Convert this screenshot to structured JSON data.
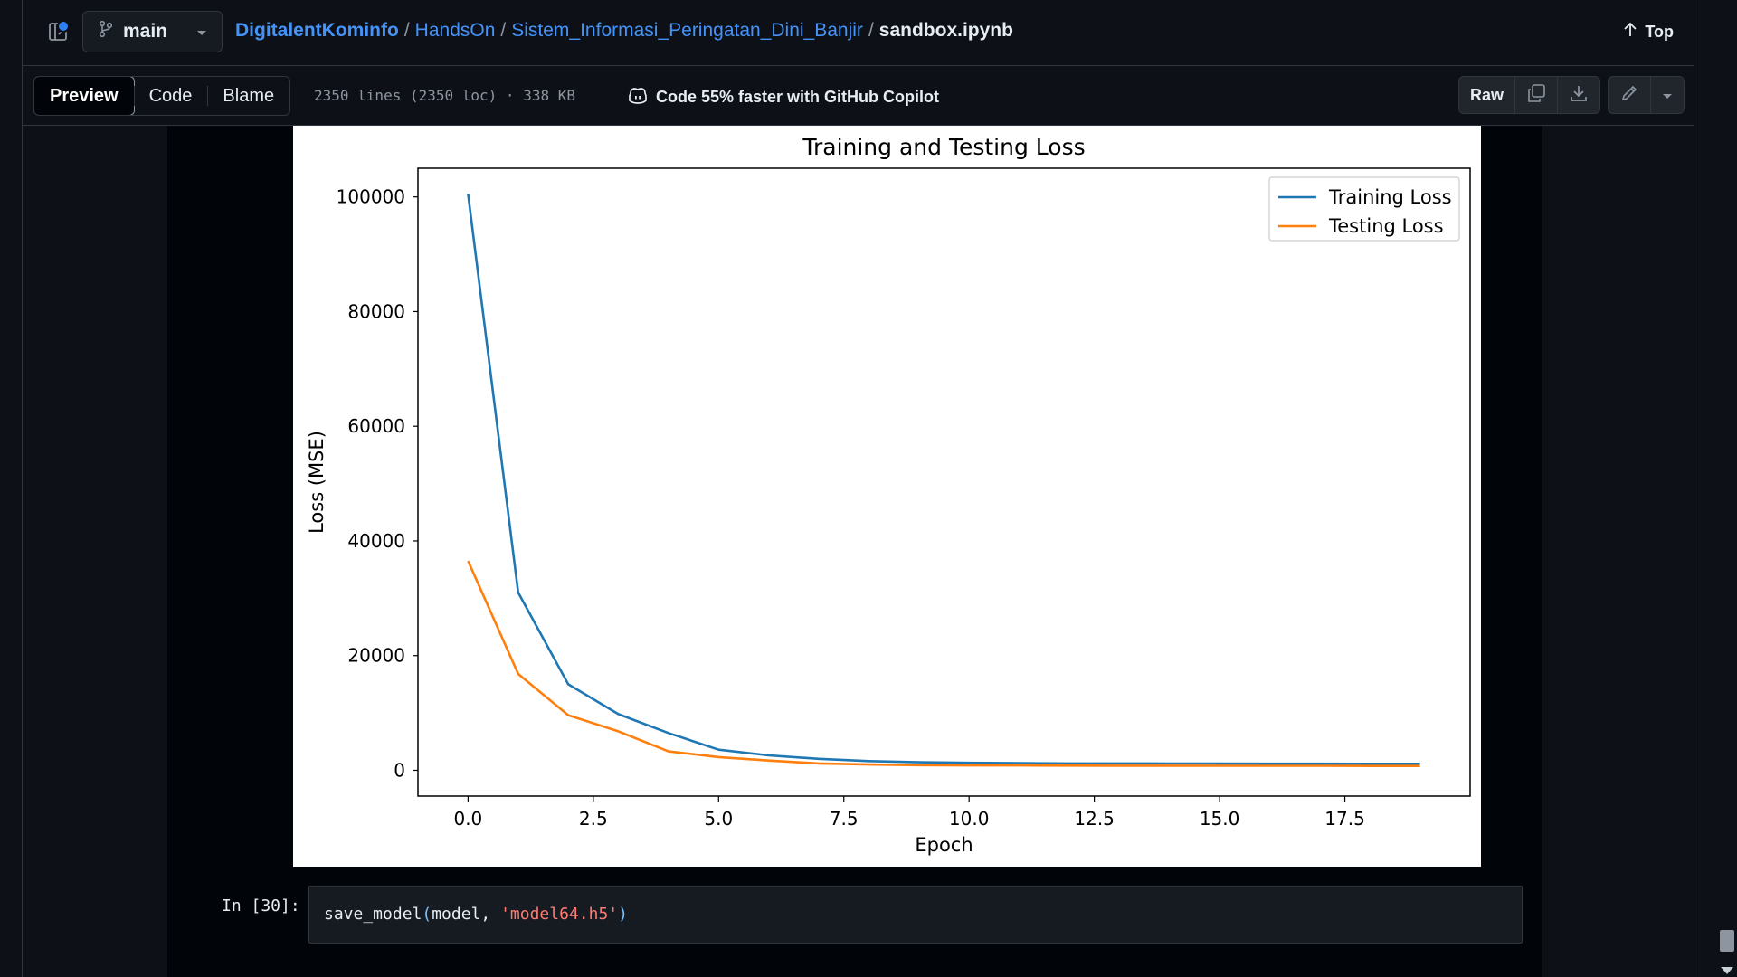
{
  "header": {
    "branch": "main",
    "breadcrumb": [
      "DigitalentKominfo",
      "HandsOn",
      "Sistem_Informasi_Peringatan_Dini_Banjir"
    ],
    "file_name": "sandbox.ipynb",
    "separator": "/",
    "top_label": "Top"
  },
  "toolbar": {
    "tabs": [
      "Preview",
      "Code",
      "Blame"
    ],
    "active_tab": "Preview",
    "file_info": "2350 lines (2350 loc) · 338 KB",
    "copilot_text": "Code 55% faster with GitHub Copilot",
    "raw_label": "Raw"
  },
  "colors": {
    "accent_link": "#4493f8",
    "training": "#1f77b4",
    "testing": "#ff7f0e"
  },
  "icons": [
    "sidebar-toggle-icon",
    "git-branch-icon",
    "triangle-down-icon",
    "arrow-up-icon",
    "copilot-icon",
    "copy-icon",
    "download-icon",
    "pencil-icon"
  ],
  "cell": {
    "prompt": "In [30]:",
    "code": {
      "fn": "save_model",
      "open": "(",
      "arg1": "model, ",
      "arg2": "'model64.h5'",
      "close": ")"
    }
  },
  "chart_data": {
    "type": "line",
    "title": "Training and Testing Loss",
    "xlabel": "Epoch",
    "ylabel": "Loss (MSE)",
    "xlim": [
      -1,
      20
    ],
    "ylim": [
      -4500,
      105000
    ],
    "xticks": [
      "0.0",
      "2.5",
      "5.0",
      "7.5",
      "10.0",
      "12.5",
      "15.0",
      "17.5"
    ],
    "xtick_values": [
      0,
      2.5,
      5,
      7.5,
      10,
      12.5,
      15,
      17.5
    ],
    "yticks": [
      "0",
      "20000",
      "40000",
      "60000",
      "80000",
      "100000"
    ],
    "ytick_values": [
      0,
      20000,
      40000,
      60000,
      80000,
      100000
    ],
    "x": [
      0,
      1,
      2,
      3,
      4,
      5,
      6,
      7,
      8,
      9,
      10,
      11,
      12,
      13,
      14,
      15,
      16,
      17,
      18,
      19
    ],
    "legend_position": "top-right",
    "grid": false,
    "series": [
      {
        "name": "Training Loss",
        "color": "#1f77b4",
        "values": [
          100500,
          31000,
          15000,
          9800,
          6500,
          3600,
          2600,
          2000,
          1600,
          1400,
          1300,
          1250,
          1200,
          1200,
          1180,
          1170,
          1150,
          1150,
          1140,
          1130
        ]
      },
      {
        "name": "Testing Loss",
        "color": "#ff7f0e",
        "values": [
          36500,
          16800,
          9600,
          6800,
          3300,
          2300,
          1700,
          1200,
          1000,
          900,
          850,
          850,
          820,
          800,
          800,
          790,
          780,
          780,
          760,
          750
        ]
      }
    ]
  }
}
